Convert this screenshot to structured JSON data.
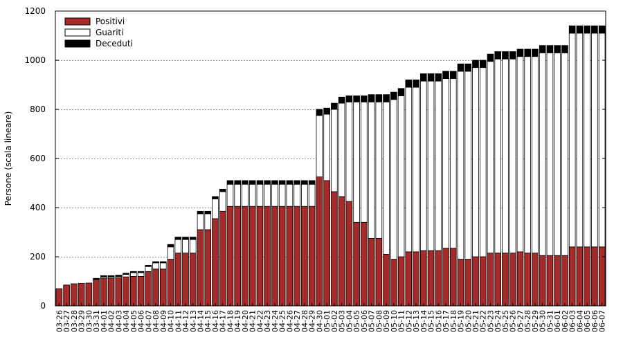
{
  "chart_data": {
    "type": "bar",
    "stacked": true,
    "ylabel": "Persone (scala lineare)",
    "ylim": [
      0,
      1200
    ],
    "yticks": [
      0,
      200,
      400,
      600,
      800,
      1000,
      1200
    ],
    "grid": true,
    "legend_position": "top-left",
    "categories": [
      "03-26",
      "03-27",
      "03-28",
      "03-29",
      "03-30",
      "03-31",
      "04-01",
      "04-02",
      "04-03",
      "04-04",
      "04-05",
      "04-06",
      "04-07",
      "04-08",
      "04-09",
      "04-10",
      "04-11",
      "04-12",
      "04-13",
      "04-14",
      "04-15",
      "04-16",
      "04-17",
      "04-18",
      "04-19",
      "04-20",
      "04-21",
      "04-22",
      "04-23",
      "04-24",
      "04-25",
      "04-26",
      "04-27",
      "04-28",
      "04-29",
      "04-30",
      "05-01",
      "05-02",
      "05-03",
      "05-04",
      "05-05",
      "05-06",
      "05-07",
      "05-08",
      "05-09",
      "05-10",
      "05-11",
      "05-12",
      "05-13",
      "05-14",
      "05-15",
      "05-16",
      "05-17",
      "05-18",
      "05-19",
      "05-20",
      "05-21",
      "05-22",
      "05-23",
      "05-24",
      "05-25",
      "05-26",
      "05-27",
      "05-28",
      "05-29",
      "05-30",
      "05-31",
      "06-01",
      "06-02",
      "06-03",
      "06-04",
      "06-05",
      "06-06",
      "06-07"
    ],
    "series": [
      {
        "name": "Positivi",
        "color": "#a52a2a",
        "values": [
          70,
          85,
          90,
          92,
          93,
          107,
          113,
          113,
          115,
          118,
          120,
          120,
          140,
          150,
          150,
          190,
          215,
          215,
          215,
          310,
          310,
          355,
          385,
          405,
          405,
          405,
          405,
          405,
          405,
          405,
          405,
          405,
          405,
          405,
          405,
          525,
          510,
          465,
          445,
          425,
          340,
          340,
          275,
          275,
          210,
          190,
          200,
          220,
          220,
          225,
          225,
          225,
          235,
          235,
          190,
          190,
          200,
          200,
          215,
          215,
          215,
          215,
          220,
          215,
          215,
          205,
          205,
          205,
          205,
          240,
          240,
          240,
          240,
          240
        ]
      },
      {
        "name": "Guariti",
        "color": "#ffffff",
        "values": [
          0,
          0,
          0,
          0,
          0,
          0,
          5,
          5,
          5,
          10,
          15,
          15,
          20,
          25,
          25,
          50,
          55,
          55,
          55,
          65,
          65,
          80,
          80,
          90,
          90,
          90,
          90,
          90,
          90,
          90,
          90,
          90,
          90,
          90,
          90,
          250,
          270,
          335,
          380,
          405,
          490,
          490,
          555,
          555,
          620,
          650,
          655,
          670,
          670,
          690,
          690,
          690,
          690,
          690,
          765,
          765,
          770,
          770,
          780,
          790,
          790,
          790,
          795,
          800,
          800,
          825,
          825,
          825,
          825,
          870,
          870,
          870,
          870,
          870
        ]
      },
      {
        "name": "Deceduti",
        "color": "#000000",
        "values": [
          0,
          0,
          0,
          0,
          0,
          5,
          5,
          5,
          5,
          5,
          5,
          5,
          5,
          5,
          5,
          10,
          10,
          10,
          10,
          10,
          10,
          10,
          10,
          15,
          15,
          15,
          15,
          15,
          15,
          15,
          15,
          15,
          15,
          15,
          15,
          25,
          25,
          25,
          25,
          25,
          25,
          25,
          30,
          30,
          30,
          30,
          30,
          30,
          30,
          30,
          30,
          30,
          30,
          30,
          30,
          30,
          30,
          30,
          30,
          30,
          30,
          30,
          30,
          30,
          30,
          30,
          30,
          30,
          30,
          30,
          30,
          30,
          30,
          30
        ]
      }
    ]
  }
}
